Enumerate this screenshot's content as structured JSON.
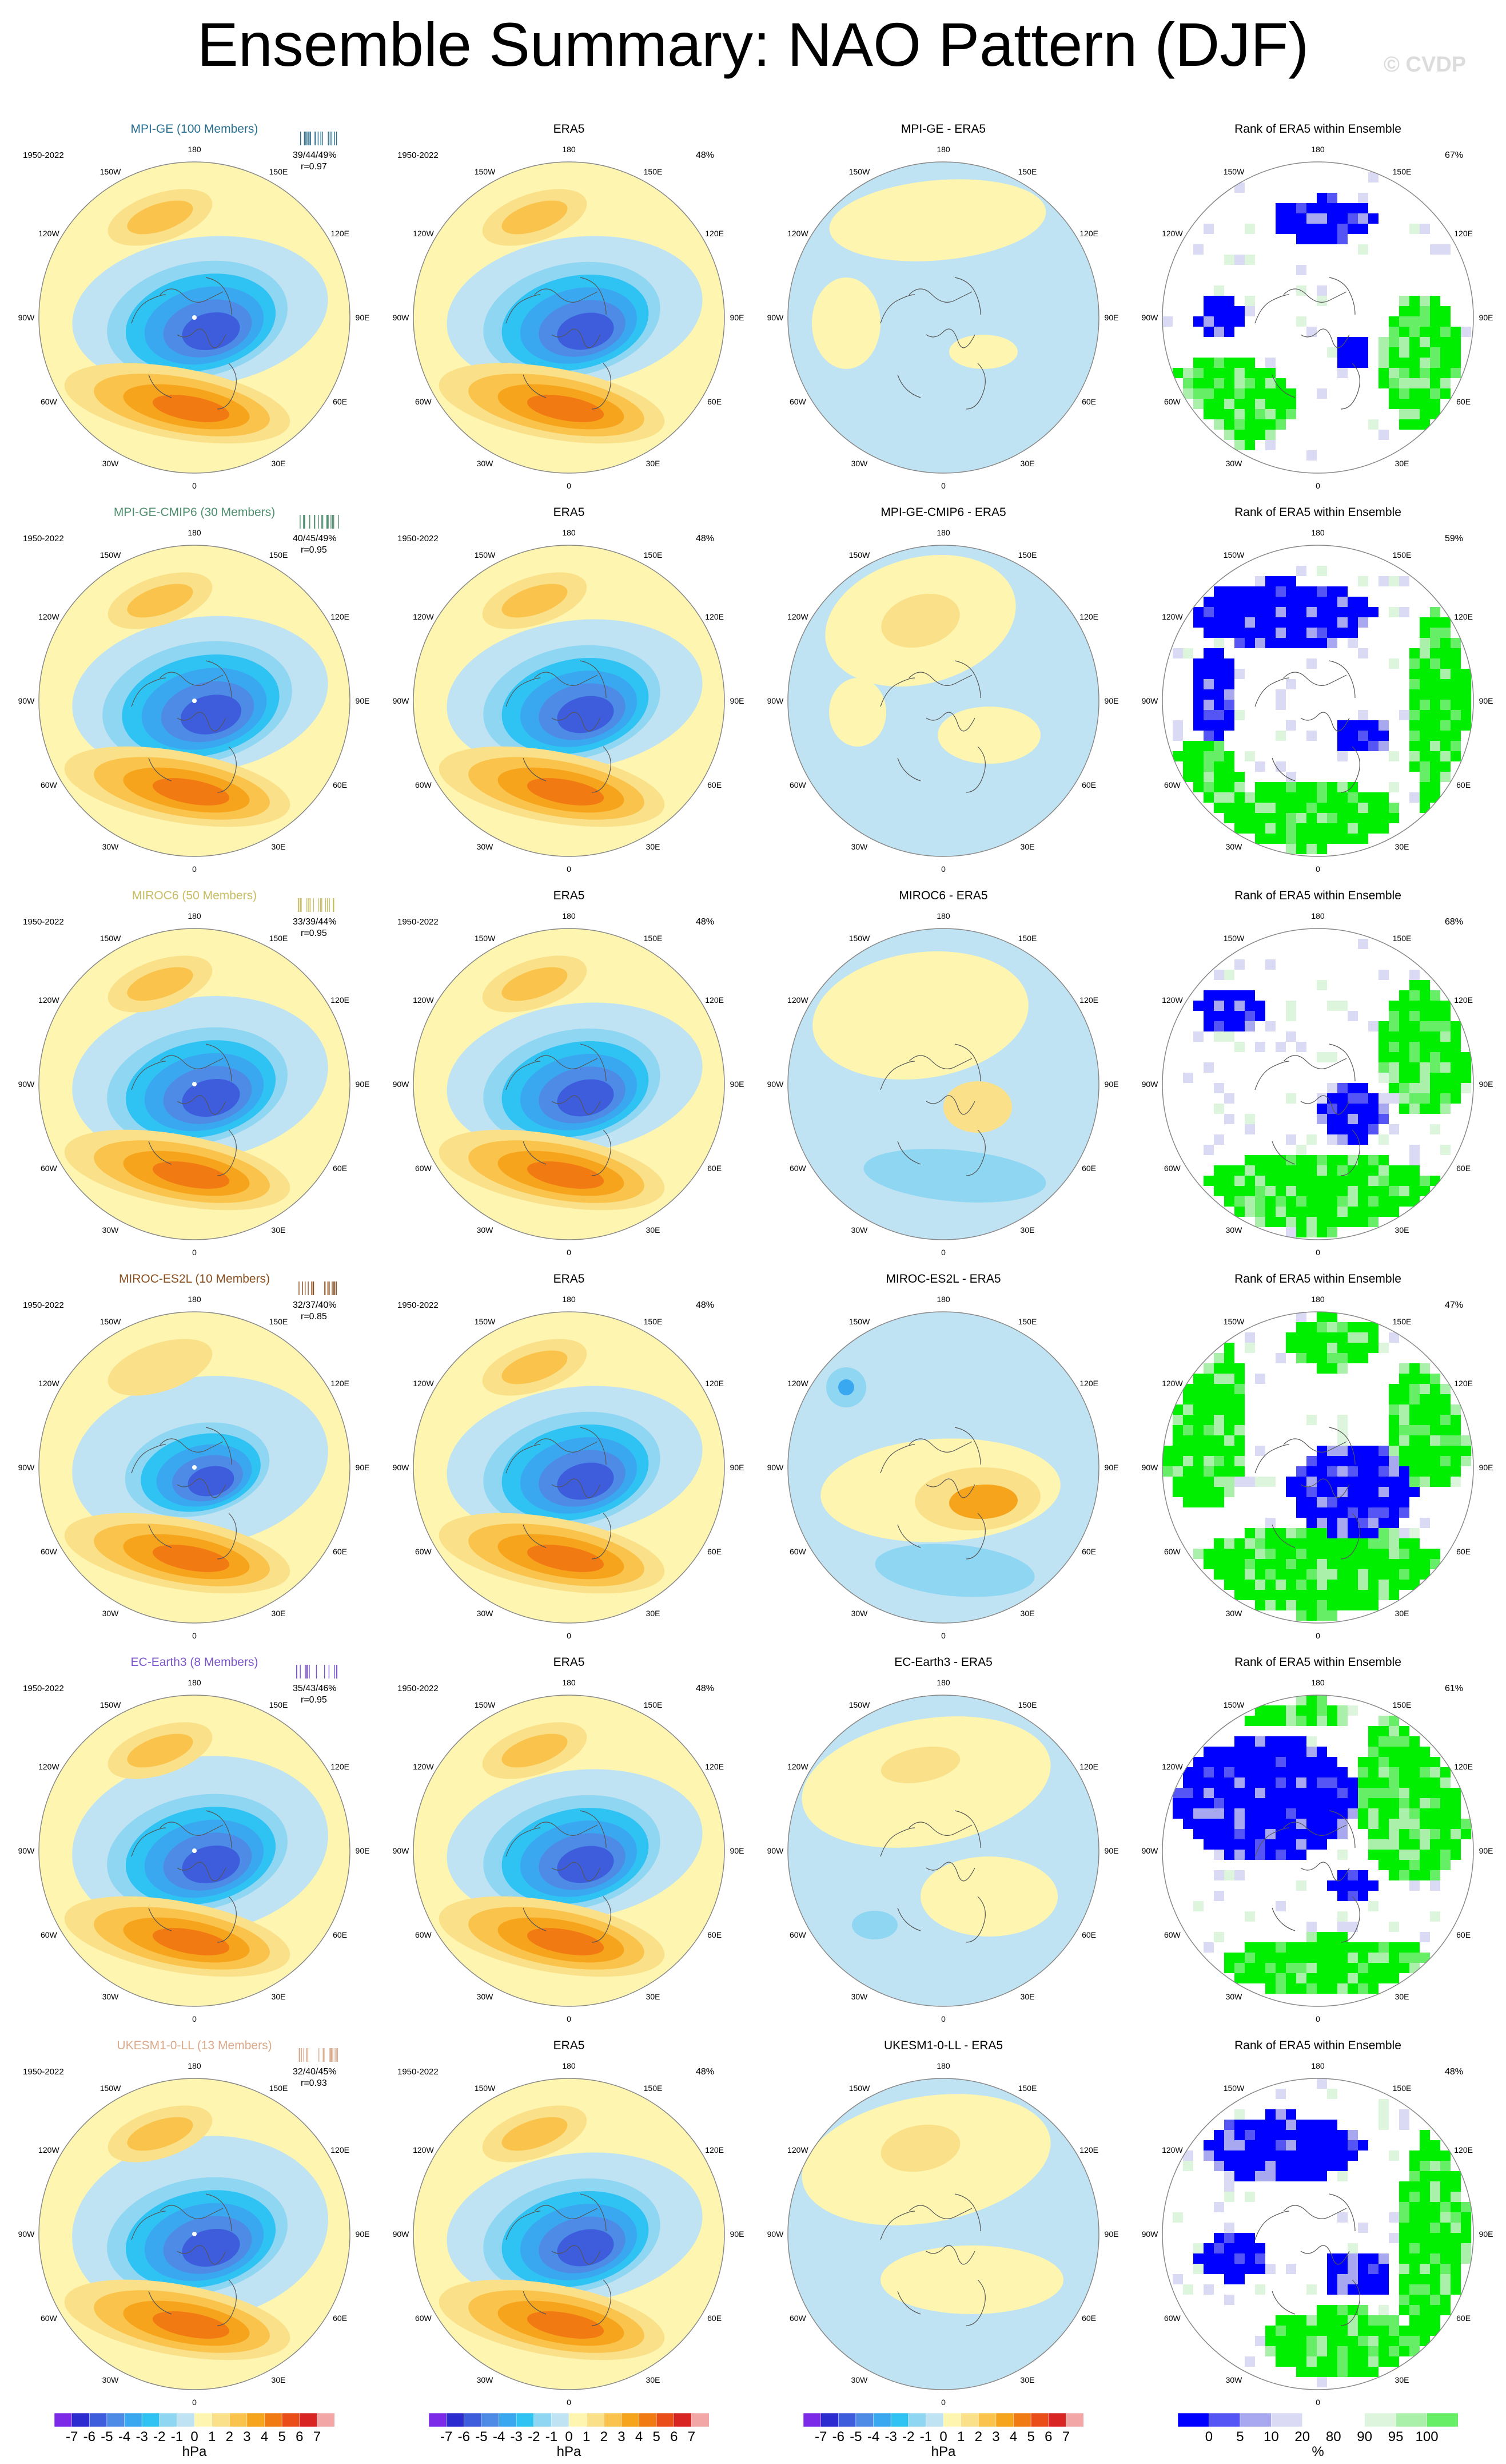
{
  "title": "Ensemble Summary: NAO Pattern (DJF)",
  "watermark": "© CVDP",
  "period": "1950-2022",
  "era5_label": "ERA5",
  "rank_title": "Rank of ERA5 within Ensemble",
  "era5_variance": "48%",
  "longitude_labels": [
    "180",
    "150E",
    "120E",
    "90E",
    "60E",
    "30E",
    "0",
    "30W",
    "60W",
    "90W",
    "120W",
    "150W"
  ],
  "colors": {
    "pattern_scale": [
      "#7d2ae8",
      "#2b2bd0",
      "#3e5ddd",
      "#4d8be6",
      "#3aa8f0",
      "#2fc3f3",
      "#8fd6f2",
      "#bfe3f2",
      "#fdf5b0",
      "#fbe08a",
      "#f9c34c",
      "#f7a41d",
      "#f27a12",
      "#ea4d18",
      "#d92424",
      "#f3a6a6"
    ],
    "rank_scale": [
      "#0000ff",
      "#5555f5",
      "#a8a8f0",
      "#dadaf5",
      "#ffffff",
      "#ffffff",
      "#ddf5dd",
      "#aaf0aa",
      "#66ee66",
      "#00ee00"
    ]
  },
  "rows": [
    {
      "model": "MPI-GE",
      "members": "MPI-GE (100 Members)",
      "diff_title": "MPI-GE - ERA5",
      "stats": "39/44/49%",
      "r": "r=0.97",
      "rank_pct": "67%",
      "color": "#2a6f8f",
      "rank_seed": 1
    },
    {
      "model": "MPI-GE-CMIP6",
      "members": "MPI-GE-CMIP6 (30 Members)",
      "diff_title": "MPI-GE-CMIP6 - ERA5",
      "stats": "40/45/49%",
      "r": "r=0.95",
      "rank_pct": "59%",
      "color": "#4f8f6f",
      "rank_seed": 2
    },
    {
      "model": "MIROC6",
      "members": "MIROC6 (50 Members)",
      "diff_title": "MIROC6 - ERA5",
      "stats": "33/39/44%",
      "r": "r=0.95",
      "rank_pct": "68%",
      "color": "#c9bd62",
      "rank_seed": 3
    },
    {
      "model": "MIROC-ES2L",
      "members": "MIROC-ES2L (10 Members)",
      "diff_title": "MIROC-ES2L - ERA5",
      "stats": "32/37/40%",
      "r": "r=0.85",
      "rank_pct": "47%",
      "color": "#8a4f1f",
      "rank_seed": 4
    },
    {
      "model": "EC-Earth3",
      "members": "EC-Earth3 (8 Members)",
      "diff_title": "EC-Earth3 - ERA5",
      "stats": "35/43/46%",
      "r": "r=0.95",
      "rank_pct": "61%",
      "color": "#7b56c9",
      "rank_seed": 5
    },
    {
      "model": "UKESM1-0-LL",
      "members": "UKESM1-0-LL (13 Members)",
      "diff_title": "UKESM1-0-LL - ERA5",
      "stats": "32/40/45%",
      "r": "r=0.93",
      "rank_pct": "48%",
      "color": "#d9a98a",
      "rank_seed": 6
    }
  ],
  "colorbar_hpa": {
    "ticks": [
      "-7",
      "-6",
      "-5",
      "-4",
      "-3",
      "-2",
      "-1",
      "0",
      "1",
      "2",
      "3",
      "4",
      "5",
      "6",
      "7"
    ],
    "units": "hPa"
  },
  "colorbar_rank": {
    "ticks": [
      "0",
      "5",
      "10",
      "20",
      "80",
      "90",
      "95",
      "100"
    ],
    "units": "%"
  }
}
